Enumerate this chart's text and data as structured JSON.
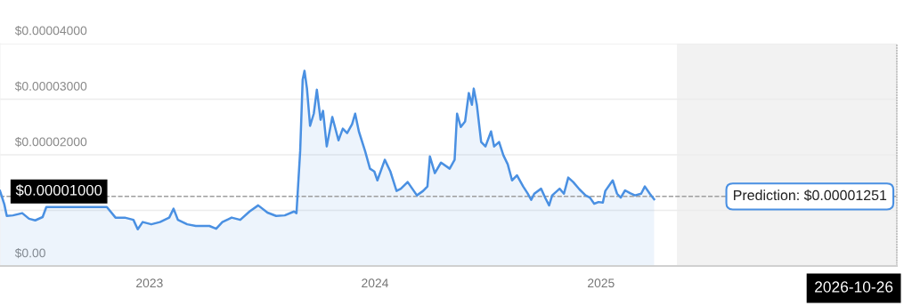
{
  "chart_data": {
    "type": "area",
    "x": [
      "2022-05-04",
      "2022-05-11",
      "2022-05-15",
      "2022-05-25",
      "2022-06-09",
      "2022-06-20",
      "2022-06-30",
      "2022-07-12",
      "2022-07-18",
      "2022-09-10",
      "2022-09-29",
      "2022-10-24",
      "2022-11-07",
      "2022-11-22",
      "2022-12-06",
      "2022-12-13",
      "2022-12-21",
      "2023-01-04",
      "2023-01-18",
      "2023-02-02",
      "2023-02-09",
      "2023-02-16",
      "2023-03-03",
      "2023-03-17",
      "2023-04-08",
      "2023-04-19",
      "2023-04-29",
      "2023-05-14",
      "2023-05-28",
      "2023-06-12",
      "2023-06-26",
      "2023-07-11",
      "2023-07-25",
      "2023-08-08",
      "2023-08-23",
      "2023-08-27",
      "2023-09-02",
      "2023-09-06",
      "2023-09-09",
      "2023-09-13",
      "2023-09-18",
      "2023-09-24",
      "2023-09-29",
      "2023-10-05",
      "2023-10-09",
      "2023-10-15",
      "2023-10-24",
      "2023-11-03",
      "2023-11-10",
      "2023-11-17",
      "2023-11-25",
      "2023-11-30",
      "2023-12-06",
      "2023-12-16",
      "2023-12-24",
      "2023-12-31",
      "2024-01-05",
      "2024-01-17",
      "2024-01-26",
      "2024-02-05",
      "2024-02-12",
      "2024-02-23",
      "2024-03-09",
      "2024-03-19",
      "2024-03-26",
      "2024-03-30",
      "2024-04-07",
      "2024-04-17",
      "2024-05-01",
      "2024-05-09",
      "2024-05-13",
      "2024-05-19",
      "2024-05-26",
      "2024-06-01",
      "2024-06-06",
      "2024-06-09",
      "2024-06-14",
      "2024-06-21",
      "2024-06-28",
      "2024-07-07",
      "2024-07-12",
      "2024-07-20",
      "2024-07-27",
      "2024-08-03",
      "2024-08-10",
      "2024-08-18",
      "2024-08-28",
      "2024-09-04",
      "2024-09-10",
      "2024-09-15",
      "2024-09-26",
      "2024-10-03",
      "2024-10-09",
      "2024-10-14",
      "2024-10-26",
      "2024-11-02",
      "2024-11-09",
      "2024-11-17",
      "2024-11-27",
      "2024-12-07",
      "2024-12-14",
      "2024-12-21",
      "2024-12-28",
      "2025-01-04",
      "2025-01-08",
      "2025-01-20",
      "2025-01-27",
      "2025-02-02",
      "2025-02-09",
      "2025-02-17",
      "2025-02-25",
      "2025-03-07",
      "2025-03-13",
      "2025-03-21",
      "2025-03-28"
    ],
    "series": [
      {
        "color": "#4a90e2",
        "values": [
          1.35e-05,
          1.11e-05,
          9e-06,
          9.1e-06,
          9.5e-06,
          8.5e-06,
          8.2e-06,
          8.8e-06,
          1.06e-05,
          1.06e-05,
          1.06e-05,
          1.06e-05,
          8.7e-06,
          8.7e-06,
          8.3e-06,
          6.6e-06,
          7.9e-06,
          7.5e-06,
          7.9e-06,
          8.7e-06,
          1.03e-05,
          8.3e-06,
          7.5e-06,
          7.2e-06,
          7.2e-06,
          6.7e-06,
          7.9e-06,
          8.7e-06,
          8.3e-06,
          9.8e-06,
          1.09e-05,
          9.6e-06,
          9e-06,
          9.1e-06,
          9.8e-06,
          9.5e-06,
          2.07e-05,
          3.35e-05,
          3.51e-05,
          3.19e-05,
          2.52e-05,
          2.74e-05,
          3.17e-05,
          2.63e-05,
          2.79e-05,
          2.15e-05,
          2.68e-05,
          2.26e-05,
          2.47e-05,
          2.39e-05,
          2.55e-05,
          2.74e-05,
          2.42e-05,
          2.07e-05,
          1.75e-05,
          1.7e-05,
          1.54e-05,
          1.91e-05,
          1.7e-05,
          1.35e-05,
          1.39e-05,
          1.51e-05,
          1.27e-05,
          1.35e-05,
          1.43e-05,
          1.97e-05,
          1.67e-05,
          1.86e-05,
          1.75e-05,
          1.91e-05,
          2.74e-05,
          2.5e-05,
          2.6e-05,
          3.11e-05,
          2.9e-05,
          3.19e-05,
          2.9e-05,
          2.23e-05,
          2.15e-05,
          2.42e-05,
          2.15e-05,
          2.23e-05,
          1.99e-05,
          1.83e-05,
          1.54e-05,
          1.63e-05,
          1.43e-05,
          1.31e-05,
          1.19e-05,
          1.3e-05,
          1.39e-05,
          1.22e-05,
          1.09e-05,
          1.27e-05,
          1.39e-05,
          1.3e-05,
          1.59e-05,
          1.51e-05,
          1.38e-05,
          1.27e-05,
          1.23e-05,
          1.12e-05,
          1.15e-05,
          1.14e-05,
          1.35e-05,
          1.54e-05,
          1.3e-05,
          1.23e-05,
          1.36e-05,
          1.31e-05,
          1.27e-05,
          1.3e-05,
          1.43e-05,
          1.3e-05,
          1.2e-05
        ]
      }
    ],
    "xlim": [
      "2022-05-04",
      "2026-04-25"
    ],
    "xticks": [
      {
        "value": "2023-01-01",
        "label": "2023"
      },
      {
        "value": "2024-01-01",
        "label": "2024"
      },
      {
        "value": "2025-01-01",
        "label": "2025"
      }
    ],
    "ylim": [
      0,
      4e-05
    ],
    "yticks": [
      {
        "value": 0,
        "label": "$0.00"
      },
      {
        "value": 1e-05,
        "label": null
      },
      {
        "value": 2e-05,
        "label": "$0.00002000"
      },
      {
        "value": 3e-05,
        "label": "$0.00003000"
      },
      {
        "value": 4e-05,
        "label": "$0.00004000"
      }
    ],
    "grid": "y",
    "marker": "none",
    "line_style": "solid",
    "ref_lines": [
      {
        "axis": "y",
        "value": 1.251e-05,
        "label": "Prediction: $0.00001251",
        "color": "#9e9e9e",
        "line_style": "dashed"
      }
    ],
    "bands": [
      {
        "axis": "x",
        "from": "2025-05-04",
        "to": "2026-04-25",
        "color": "#f2f2f2"
      }
    ],
    "annotations": [
      "$0.00001000",
      "2026-10-26"
    ]
  }
}
